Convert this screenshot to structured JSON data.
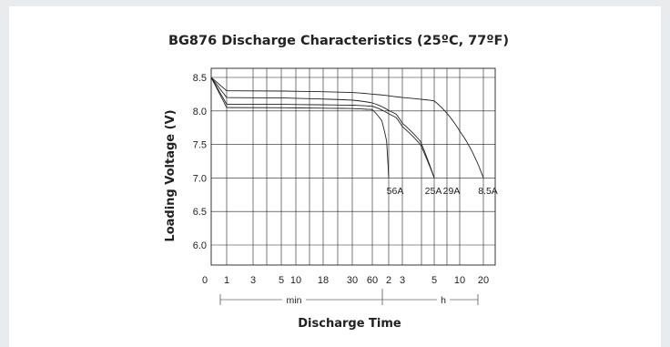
{
  "chart_data": {
    "type": "line",
    "title": "BG876 Discharge Characteristics (25ºC, 77ºF)",
    "xlabel": "Discharge Time",
    "ylabel": "Loading Voltage (V)",
    "x_unit_min": "min",
    "x_unit_h": "h",
    "x_scale": "log",
    "ylim": [
      6.0,
      8.5
    ],
    "y_ticks": [
      "8.5",
      "8.0",
      "7.5",
      "7.0",
      "6.5",
      "6.0"
    ],
    "y_zero_label": "0",
    "x_ticks": [
      "1",
      "3",
      "5",
      "10",
      "18",
      "30",
      "60",
      "2",
      "3",
      "5",
      "10",
      "20"
    ],
    "x_tick_minutes": [
      1,
      3,
      5,
      10,
      18,
      30,
      60,
      120,
      180,
      300,
      600,
      1200
    ],
    "grid": true,
    "series": [
      {
        "name": "56A",
        "x_min": [
          0,
          1,
          60,
          90,
          110,
          120
        ],
        "y": [
          8.5,
          8.05,
          8.02,
          7.85,
          7.55,
          7.0
        ]
      },
      {
        "name": "25A",
        "x_min": [
          0,
          1,
          60,
          150,
          240,
          300
        ],
        "y": [
          8.5,
          8.1,
          8.07,
          7.9,
          7.5,
          7.0
        ]
      },
      {
        "name": "29A",
        "x_min": [
          0,
          1,
          60,
          150,
          240,
          300
        ],
        "y": [
          8.5,
          8.2,
          8.12,
          7.95,
          7.55,
          7.0
        ]
      },
      {
        "name": "8.5A",
        "x_min": [
          0,
          1,
          60,
          300,
          600,
          1200
        ],
        "y": [
          8.5,
          8.3,
          8.25,
          8.15,
          7.7,
          7.0
        ]
      }
    ]
  }
}
